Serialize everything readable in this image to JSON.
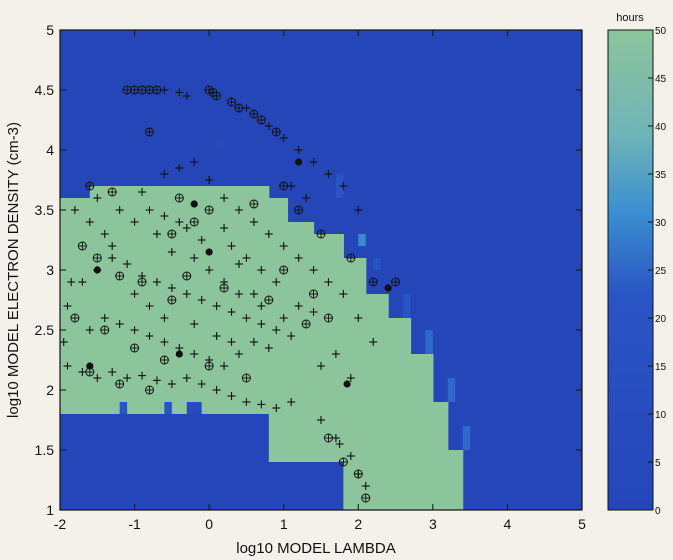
{
  "chart_data": {
    "type": "heatmap",
    "title": "",
    "xlabel": "log10 MODEL LAMBDA",
    "ylabel": "log10 MODEL ELECTRON DENSITY  (cm-3)",
    "xlim": [
      -2,
      5
    ],
    "ylim": [
      1,
      5
    ],
    "xticks": [
      "-2",
      "-1",
      "0",
      "1",
      "2",
      "3",
      "4",
      "5"
    ],
    "yticks": [
      "1",
      "1.5",
      "2",
      "2.5",
      "3",
      "3.5",
      "4",
      "4.5",
      "5"
    ],
    "colorbar": {
      "label": "hours",
      "range": [
        0,
        50
      ],
      "ticks": [
        "0",
        "5",
        "10",
        "15",
        "20",
        "25",
        "30",
        "35",
        "40",
        "45",
        "50"
      ],
      "low_color": "#2446b8",
      "mid_color": "#3a8fd0",
      "high_color": "#8cc49c"
    },
    "grid_cell_size": [
      0.1,
      0.1
    ],
    "high_region_columns": [
      {
        "x": [
          -2.0,
          -1.6
        ],
        "y": [
          1.8,
          3.6
        ]
      },
      {
        "x": [
          -1.6,
          -0.3
        ],
        "y": [
          1.8,
          3.7
        ]
      },
      {
        "x": [
          -0.3,
          0.8
        ],
        "y": [
          1.8,
          3.7
        ]
      },
      {
        "x": [
          0.8,
          1.05
        ],
        "y": [
          1.4,
          3.6
        ]
      },
      {
        "x": [
          1.05,
          1.4
        ],
        "y": [
          1.4,
          3.4
        ]
      },
      {
        "x": [
          1.4,
          1.8
        ],
        "y": [
          1.4,
          3.3
        ]
      },
      {
        "x": [
          1.8,
          2.1
        ],
        "y": [
          1.0,
          3.1
        ]
      },
      {
        "x": [
          2.1,
          2.4
        ],
        "y": [
          1.0,
          2.8
        ]
      },
      {
        "x": [
          2.4,
          2.7
        ],
        "y": [
          1.0,
          2.6
        ]
      },
      {
        "x": [
          2.7,
          3.0
        ],
        "y": [
          1.0,
          2.3
        ]
      },
      {
        "x": [
          3.0,
          3.2
        ],
        "y": [
          1.0,
          1.9
        ]
      },
      {
        "x": [
          3.2,
          3.4
        ],
        "y": [
          1.0,
          1.5
        ]
      }
    ],
    "partial_cells": [
      {
        "x": [
          -1.2,
          -1.1
        ],
        "y": [
          1.8,
          1.9
        ],
        "value": 20
      },
      {
        "x": [
          -0.6,
          -0.5
        ],
        "y": [
          1.8,
          1.9
        ],
        "value": 20
      },
      {
        "x": [
          -0.3,
          -0.1
        ],
        "y": [
          1.8,
          1.9
        ],
        "value": 10
      },
      {
        "x": [
          2.6,
          2.7
        ],
        "y": [
          2.6,
          2.8
        ],
        "value": 20
      },
      {
        "x": [
          2.9,
          3.0
        ],
        "y": [
          2.3,
          2.5
        ],
        "value": 25
      },
      {
        "x": [
          3.2,
          3.3
        ],
        "y": [
          1.9,
          2.1
        ],
        "value": 25
      },
      {
        "x": [
          3.4,
          3.5
        ],
        "y": [
          1.5,
          1.7
        ],
        "value": 25
      },
      {
        "x": [
          2.0,
          2.1
        ],
        "y": [
          3.2,
          3.3
        ],
        "value": 30
      },
      {
        "x": [
          1.7,
          1.8
        ],
        "y": [
          3.6,
          3.8
        ],
        "value": 20
      },
      {
        "x": [
          2.2,
          2.3
        ],
        "y": [
          3.0,
          3.1
        ],
        "value": 20
      },
      {
        "x": [
          0.1,
          0.2
        ],
        "y": [
          4.0,
          4.1
        ],
        "value": 10
      }
    ],
    "series": [
      {
        "marker": "plus",
        "points": [
          [
            -1.8,
            3.5
          ],
          [
            -1.6,
            3.4
          ],
          [
            -1.4,
            3.3
          ],
          [
            -1.2,
            3.5
          ],
          [
            -1.0,
            3.4
          ],
          [
            -0.8,
            3.5
          ],
          [
            -0.6,
            3.45
          ],
          [
            -0.4,
            3.4
          ],
          [
            -1.9,
            2.7
          ],
          [
            -1.7,
            2.9
          ],
          [
            -1.5,
            3.0
          ],
          [
            -1.3,
            3.1
          ],
          [
            -1.1,
            3.05
          ],
          [
            -0.9,
            2.95
          ],
          [
            -0.7,
            2.9
          ],
          [
            -0.5,
            2.85
          ],
          [
            -0.3,
            2.8
          ],
          [
            -0.1,
            2.75
          ],
          [
            0.1,
            2.7
          ],
          [
            0.3,
            2.65
          ],
          [
            0.5,
            2.6
          ],
          [
            0.7,
            2.55
          ],
          [
            0.9,
            2.5
          ],
          [
            1.1,
            2.45
          ],
          [
            -1.9,
            2.2
          ],
          [
            -1.7,
            2.15
          ],
          [
            -1.5,
            2.1
          ],
          [
            -1.3,
            2.15
          ],
          [
            -1.1,
            2.1
          ],
          [
            -0.9,
            2.12
          ],
          [
            -0.7,
            2.08
          ],
          [
            -0.5,
            2.05
          ],
          [
            -0.3,
            2.1
          ],
          [
            -0.1,
            2.05
          ],
          [
            0.1,
            2.0
          ],
          [
            0.3,
            1.95
          ],
          [
            0.5,
            1.9
          ],
          [
            0.7,
            1.88
          ],
          [
            0.9,
            1.85
          ],
          [
            1.1,
            1.9
          ],
          [
            -1.6,
            2.5
          ],
          [
            -1.4,
            2.6
          ],
          [
            -1.2,
            2.55
          ],
          [
            -1.0,
            2.5
          ],
          [
            -0.8,
            2.45
          ],
          [
            -0.6,
            2.4
          ],
          [
            -0.4,
            2.35
          ],
          [
            -0.2,
            2.3
          ],
          [
            0.0,
            2.25
          ],
          [
            0.2,
            2.2
          ],
          [
            0.4,
            2.3
          ],
          [
            0.6,
            2.4
          ],
          [
            0.8,
            2.35
          ],
          [
            1.0,
            2.6
          ],
          [
            1.2,
            2.7
          ],
          [
            1.4,
            2.65
          ],
          [
            -0.6,
            3.8
          ],
          [
            -0.4,
            3.85
          ],
          [
            -0.2,
            3.9
          ],
          [
            0.0,
            3.75
          ],
          [
            0.2,
            3.6
          ],
          [
            0.4,
            3.5
          ],
          [
            0.6,
            3.4
          ],
          [
            0.8,
            3.3
          ],
          [
            1.0,
            3.2
          ],
          [
            1.2,
            3.1
          ],
          [
            1.4,
            3.0
          ],
          [
            1.6,
            2.9
          ],
          [
            1.8,
            2.8
          ],
          [
            2.0,
            2.6
          ],
          [
            2.2,
            2.4
          ],
          [
            1.7,
            2.3
          ],
          [
            1.9,
            2.1
          ],
          [
            1.5,
            2.2
          ],
          [
            -0.6,
            4.5
          ],
          [
            -0.4,
            4.48
          ],
          [
            -0.3,
            4.45
          ],
          [
            0.5,
            4.35
          ],
          [
            0.8,
            4.2
          ],
          [
            1.0,
            4.1
          ],
          [
            1.2,
            4.0
          ],
          [
            1.4,
            3.9
          ],
          [
            1.6,
            3.8
          ],
          [
            1.8,
            3.7
          ],
          [
            2.0,
            3.5
          ],
          [
            1.1,
            3.7
          ],
          [
            1.3,
            3.6
          ],
          [
            0.3,
            3.2
          ],
          [
            0.5,
            3.1
          ],
          [
            0.7,
            3.0
          ],
          [
            0.9,
            2.9
          ],
          [
            -0.2,
            3.1
          ],
          [
            0.0,
            3.0
          ],
          [
            0.2,
            2.9
          ],
          [
            0.4,
            2.8
          ],
          [
            0.6,
            2.8
          ],
          [
            -1.5,
            3.6
          ],
          [
            -1.3,
            3.2
          ],
          [
            -1.0,
            2.8
          ],
          [
            -0.8,
            2.7
          ],
          [
            -0.6,
            2.6
          ],
          [
            -0.2,
            2.55
          ],
          [
            0.1,
            2.45
          ],
          [
            0.3,
            2.4
          ],
          [
            1.5,
            1.75
          ],
          [
            1.7,
            1.6
          ],
          [
            1.75,
            1.55
          ],
          [
            1.9,
            1.45
          ],
          [
            2.0,
            1.3
          ],
          [
            2.1,
            1.2
          ],
          [
            -1.95,
            2.4
          ],
          [
            -1.85,
            2.9
          ],
          [
            -0.9,
            3.65
          ],
          [
            -0.7,
            3.3
          ],
          [
            -0.5,
            3.15
          ],
          [
            -0.3,
            3.35
          ],
          [
            -0.1,
            3.25
          ],
          [
            0.2,
            3.35
          ],
          [
            0.4,
            3.05
          ],
          [
            0.7,
            2.7
          ]
        ]
      },
      {
        "marker": "circle-plus",
        "points": [
          [
            -1.1,
            4.5
          ],
          [
            -1.0,
            4.5
          ],
          [
            -0.9,
            4.5
          ],
          [
            -0.8,
            4.5
          ],
          [
            -0.7,
            4.5
          ],
          [
            0.0,
            4.5
          ],
          [
            0.05,
            4.48
          ],
          [
            0.1,
            4.45
          ],
          [
            0.3,
            4.4
          ],
          [
            0.4,
            4.35
          ],
          [
            0.6,
            4.3
          ],
          [
            0.7,
            4.25
          ],
          [
            0.9,
            4.15
          ],
          [
            -0.8,
            4.15
          ],
          [
            -1.6,
            3.7
          ],
          [
            -1.3,
            3.65
          ],
          [
            -0.4,
            3.6
          ],
          [
            0.0,
            3.5
          ],
          [
            -0.5,
            3.3
          ],
          [
            -0.2,
            3.4
          ],
          [
            -1.7,
            3.2
          ],
          [
            -1.5,
            3.1
          ],
          [
            -1.2,
            2.95
          ],
          [
            -0.9,
            2.9
          ],
          [
            -0.5,
            2.75
          ],
          [
            0.6,
            3.55
          ],
          [
            1.0,
            3.7
          ],
          [
            1.2,
            3.5
          ],
          [
            1.5,
            3.3
          ],
          [
            1.9,
            3.1
          ],
          [
            2.2,
            2.9
          ],
          [
            1.0,
            3.0
          ],
          [
            1.4,
            2.8
          ],
          [
            1.6,
            2.6
          ],
          [
            -1.8,
            2.6
          ],
          [
            -1.4,
            2.5
          ],
          [
            -1.0,
            2.35
          ],
          [
            -0.6,
            2.25
          ],
          [
            0.0,
            2.2
          ],
          [
            0.5,
            2.1
          ],
          [
            -1.6,
            2.15
          ],
          [
            -1.2,
            2.05
          ],
          [
            -0.8,
            2.0
          ],
          [
            1.6,
            1.6
          ],
          [
            1.8,
            1.4
          ],
          [
            2.0,
            1.3
          ],
          [
            2.1,
            1.1
          ],
          [
            1.3,
            2.55
          ],
          [
            -0.3,
            2.95
          ],
          [
            0.2,
            2.85
          ],
          [
            0.8,
            2.75
          ],
          [
            2.5,
            2.9
          ]
        ]
      },
      {
        "marker": "filled-dot",
        "points": [
          [
            1.2,
            3.9
          ],
          [
            -0.2,
            3.55
          ],
          [
            -1.5,
            3.0
          ],
          [
            0.0,
            3.15
          ],
          [
            2.4,
            2.85
          ],
          [
            1.85,
            2.05
          ],
          [
            -1.6,
            2.2
          ],
          [
            -0.4,
            2.3
          ]
        ]
      }
    ]
  }
}
